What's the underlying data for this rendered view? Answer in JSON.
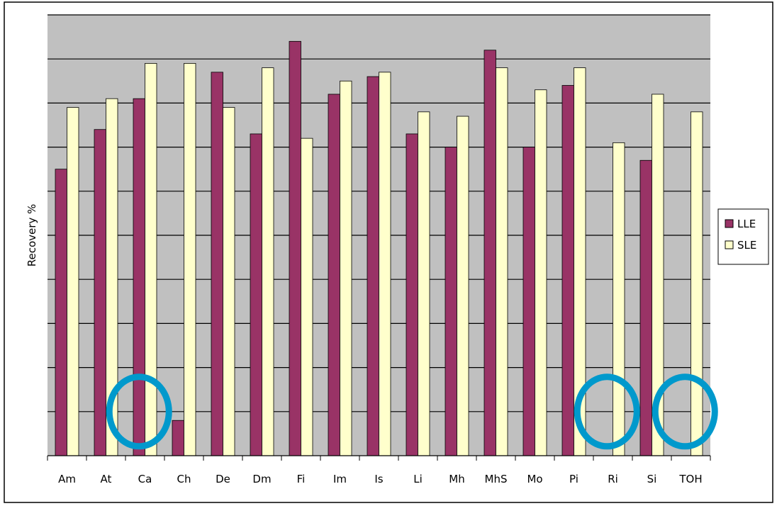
{
  "chart_data": {
    "type": "bar",
    "title": "",
    "xlabel": "",
    "ylabel": "Recovery %",
    "ylim": [
      0,
      10
    ],
    "grid": true,
    "legend_position": "right",
    "categories": [
      "Am",
      "At",
      "Ca",
      "Ch",
      "De",
      "Dm",
      "Fi",
      "Im",
      "Is",
      "Li",
      "Mh",
      "MhS",
      "Mo",
      "Pi",
      "Ri",
      "Si",
      "TOH"
    ],
    "series": [
      {
        "name": "LLE",
        "color": "#993366",
        "values": [
          6.5,
          7.4,
          8.1,
          0.8,
          8.7,
          7.3,
          9.4,
          8.2,
          8.6,
          7.3,
          7.0,
          9.2,
          7.0,
          8.4,
          0.0,
          6.7,
          0.0
        ]
      },
      {
        "name": "SLE",
        "color": "#ffffcc",
        "values": [
          7.9,
          8.1,
          8.9,
          8.9,
          7.9,
          8.8,
          7.2,
          8.5,
          8.7,
          7.8,
          7.7,
          8.8,
          8.3,
          8.8,
          7.1,
          8.2,
          7.8
        ]
      }
    ],
    "highlights": [
      {
        "category": "Ca",
        "color": "#0099cc"
      },
      {
        "category": "Ri",
        "color": "#0099cc"
      },
      {
        "category": "TOH",
        "color": "#0099cc"
      }
    ]
  },
  "colors": {
    "plot_background": "#c0c0c0",
    "gridline": "#000000"
  }
}
